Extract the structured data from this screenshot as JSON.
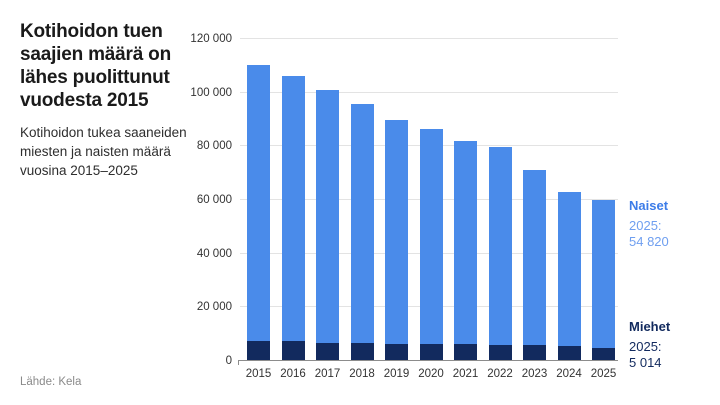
{
  "header": {
    "title": "Kotihoidon tuen\nsaajien määrä on\nlähes puolittunut\nvuodesta 2015",
    "subtitle": "Kotihoidon tukea saaneiden\nmiesten ja naisten määrä\nvuosina 2015–2025"
  },
  "footer": {
    "source": "Lähde: Kela"
  },
  "colors": {
    "naiset": "#4a8bea",
    "miehet": "#122a5e",
    "naiset_label": "#3c7ce8",
    "naiset_value": "#6f9ff0",
    "grid": "#e3e3e3",
    "axis": "#8c8c8c",
    "text": "#1a1a1a",
    "muted": "#8a8a8a"
  },
  "chart_data": {
    "type": "bar",
    "stacked": true,
    "title": "Kotihoidon tuen saajien määrä on lähes puolittunut vuodesta 2015",
    "subtitle": "Kotihoidon tukea saaneiden miesten ja naisten määrä vuosina 2015–2025",
    "source": "Lähde: Kela",
    "categories": [
      "2015",
      "2016",
      "2017",
      "2018",
      "2019",
      "2020",
      "2021",
      "2022",
      "2023",
      "2024",
      "2025"
    ],
    "series": [
      {
        "name": "Miehet",
        "color": "#122a5e",
        "values": [
          7400,
          7300,
          6900,
          6600,
          6400,
          6300,
          6200,
          6100,
          5900,
          5500,
          5014
        ]
      },
      {
        "name": "Naiset",
        "color": "#4a8bea",
        "values": [
          102800,
          98900,
          94100,
          89100,
          83500,
          80200,
          75900,
          73600,
          65400,
          57400,
          54820
        ]
      }
    ],
    "ylim": [
      0,
      120000
    ],
    "yticks": [
      {
        "value": 0,
        "label": "0"
      },
      {
        "value": 20000,
        "label": "20 000"
      },
      {
        "value": 40000,
        "label": "40 000"
      },
      {
        "value": 60000,
        "label": "60 000"
      },
      {
        "value": 80000,
        "label": "80 000"
      },
      {
        "value": 100000,
        "label": "100 000"
      },
      {
        "value": 120000,
        "label": "120 000"
      }
    ],
    "grid": "horizontal",
    "legend_position": "right-annotations",
    "annotations": {
      "naiset": {
        "label": "Naiset",
        "year": "2025:",
        "value": "54 820"
      },
      "miehet": {
        "label": "Miehet",
        "year": "2025:",
        "value": "5 014"
      }
    }
  }
}
